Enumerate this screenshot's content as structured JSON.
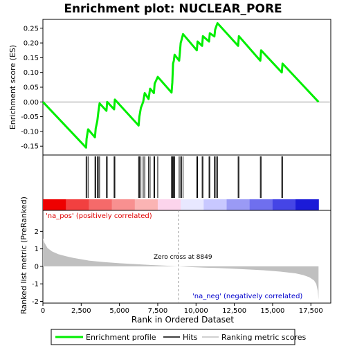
{
  "chart_data": {
    "type": "line",
    "title": "Enrichment plot: NUCLEAR_PORE",
    "top_panel": {
      "ylabel": "Enrichment score (ES)",
      "ylim": [
        -0.18,
        0.28
      ],
      "yticks": [
        -0.15,
        -0.1,
        -0.05,
        0.0,
        0.05,
        0.1,
        0.15,
        0.2,
        0.25
      ],
      "ytick_labels": [
        "-0.15",
        "-0.10",
        "-0.05",
        "0.00",
        "0.05",
        "0.10",
        "0.15",
        "0.20",
        "0.25"
      ],
      "series": [
        {
          "name": "Enrichment profile",
          "color": "#00ee00",
          "x": [
            0,
            2820,
            2850,
            2950,
            3400,
            3450,
            3550,
            3620,
            3700,
            4150,
            4200,
            4650,
            4700,
            6250,
            6300,
            6400,
            6550,
            6650,
            6900,
            7000,
            7250,
            7300,
            7500,
            8400,
            8450,
            8500,
            8550,
            8600,
            8900,
            9000,
            9050,
            9150,
            10050,
            10100,
            10400,
            10450,
            10850,
            10900,
            11200,
            11250,
            11350,
            11400,
            12750,
            12800,
            14200,
            14250,
            15600,
            15650,
            18000
          ],
          "y": [
            0.0,
            -0.155,
            -0.125,
            -0.093,
            -0.12,
            -0.09,
            -0.065,
            -0.035,
            -0.005,
            -0.03,
            0.0,
            -0.025,
            0.008,
            -0.08,
            -0.05,
            -0.02,
            0.0,
            0.03,
            0.01,
            0.045,
            0.03,
            0.062,
            0.085,
            0.032,
            0.065,
            0.13,
            0.14,
            0.16,
            0.14,
            0.2,
            0.21,
            0.23,
            0.175,
            0.205,
            0.19,
            0.223,
            0.205,
            0.233,
            0.222,
            0.245,
            0.26,
            0.267,
            0.19,
            0.223,
            0.14,
            0.175,
            0.1,
            0.13,
            0.0
          ]
        }
      ]
    },
    "hits": [
      2820,
      2850,
      2950,
      3400,
      3450,
      3550,
      3620,
      3700,
      4150,
      4200,
      4650,
      4700,
      6250,
      6300,
      6400,
      6550,
      6650,
      6900,
      7000,
      7250,
      7300,
      7500,
      8400,
      8450,
      8500,
      8550,
      8600,
      8900,
      9000,
      9050,
      9150,
      10050,
      10100,
      10400,
      10450,
      10850,
      10900,
      11200,
      11250,
      11350,
      11400,
      12750,
      12800,
      14200,
      14250,
      15600,
      15650
    ],
    "bottom_panel": {
      "ylabel": "Ranked list metric (PreRanked)",
      "xlabel": "Rank in Ordered Dataset",
      "ylim": [
        -2.1,
        3.2
      ],
      "yticks": [
        -2,
        -1,
        0,
        1,
        2
      ],
      "ytick_labels": [
        "-2",
        "-1",
        "0",
        "1",
        "2"
      ],
      "xlim": [
        0,
        18800
      ],
      "xticks": [
        0,
        2500,
        5000,
        7500,
        10000,
        12500,
        15000,
        17500
      ],
      "xtick_labels": [
        "0",
        "2,500",
        "5,000",
        "7,500",
        "10,000",
        "12,500",
        "15,000",
        "17,500"
      ],
      "metric_x": [
        0,
        100,
        300,
        600,
        1000,
        1500,
        2000,
        3000,
        4000,
        5000,
        6000,
        7000,
        8000,
        8849,
        9500,
        10500,
        11500,
        12500,
        13500,
        14500,
        15500,
        16500,
        17000,
        17400,
        17700,
        17850,
        17950,
        18000
      ],
      "metric_y": [
        1.6,
        1.35,
        1.05,
        0.85,
        0.7,
        0.58,
        0.48,
        0.33,
        0.24,
        0.18,
        0.13,
        0.08,
        0.04,
        0.0,
        -0.03,
        -0.07,
        -0.1,
        -0.14,
        -0.18,
        -0.23,
        -0.3,
        -0.4,
        -0.5,
        -0.62,
        -0.8,
        -1.0,
        -1.4,
        -1.9
      ],
      "zero_cross_label": "Zero cross at 8849",
      "zero_cross_x": 8849,
      "pos_label": "'na_pos' (positively correlated)",
      "neg_label": "'na_neg' (negatively correlated)",
      "fill_color": "#c0c0c0"
    },
    "heat_bar_colors": [
      "#ee0000",
      "#f24040",
      "#f56a6a",
      "#f89090",
      "#fbb4b4",
      "#fcd4ec",
      "#e8e8ff",
      "#c8c8ff",
      "#9a9af5",
      "#6f6fee",
      "#4545e6",
      "#1b1bd8"
    ],
    "legend": {
      "placement": "bottom",
      "items": [
        {
          "label": "Enrichment profile",
          "color": "#00ee00"
        },
        {
          "label": "Hits",
          "color": "#000000"
        },
        {
          "label": "Ranking metric scores",
          "color": "#c0c0c0"
        }
      ]
    }
  }
}
